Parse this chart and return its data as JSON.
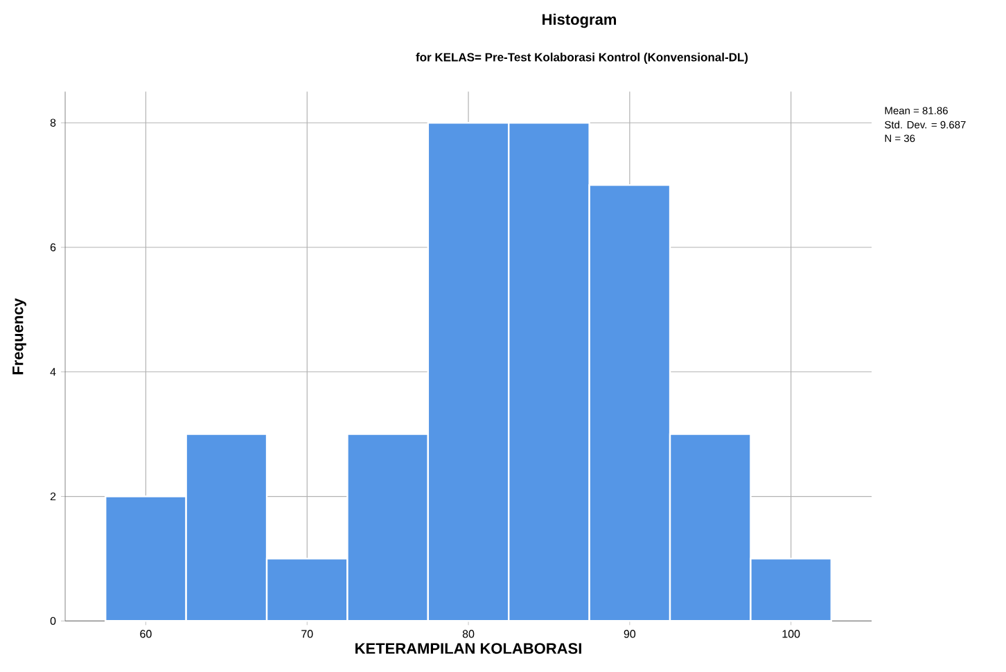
{
  "chart_data": {
    "type": "histogram",
    "title": "Histogram",
    "subtitle": "for KELAS= Pre-Test Kolaborasi Kontrol (Konvensional-DL)",
    "xlabel": "KETERAMPILAN KOLABORASI",
    "ylabel": "Frequency",
    "bins": [
      57.5,
      62.5,
      67.5,
      72.5,
      77.5,
      82.5,
      87.5,
      92.5,
      97.5,
      102.5
    ],
    "values": [
      2,
      3,
      1,
      3,
      8,
      8,
      7,
      3,
      1
    ],
    "color": "#5596e6",
    "xlim": [
      55,
      105
    ],
    "ylim": [
      0,
      8.5
    ],
    "xticks": [
      60,
      70,
      80,
      90,
      100
    ],
    "yticks": [
      0,
      2,
      4,
      6,
      8
    ],
    "grid": true,
    "annotations": [
      "Mean = 81.86",
      "Std. Dev. = 9.687",
      "N = 36"
    ]
  }
}
